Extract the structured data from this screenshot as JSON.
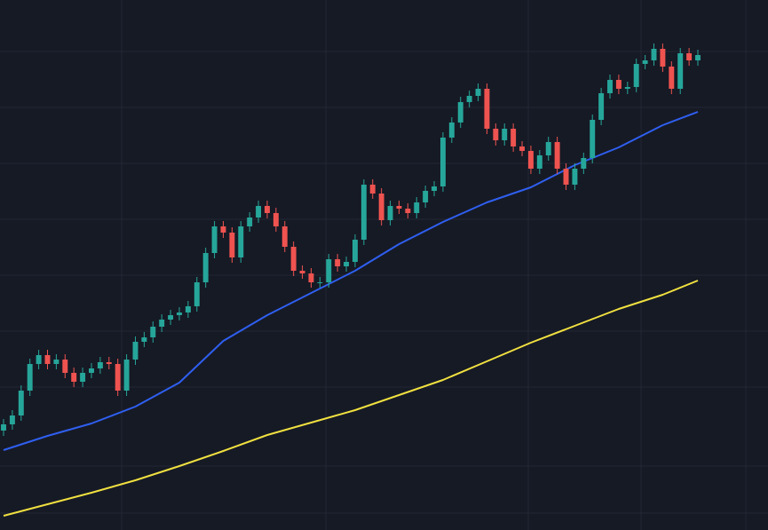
{
  "chart_data": {
    "type": "candlestick",
    "up_color": "#26a69a",
    "down_color": "#ef5350",
    "xlim": [
      0,
      79
    ],
    "ylim": [
      0,
      597
    ],
    "open": [
      112,
      119,
      129,
      157,
      187,
      197,
      187,
      192,
      177,
      167,
      177,
      182,
      189,
      187,
      157,
      192,
      212,
      217,
      229,
      237,
      242,
      245,
      252,
      279,
      312,
      342,
      335,
      307,
      342,
      352,
      365,
      357,
      342,
      319,
      292,
      289,
      279,
      279,
      305,
      297,
      302,
      327,
      389,
      379,
      349,
      365,
      362,
      357,
      369,
      382,
      387,
      442,
      459,
      482,
      489,
      497,
      452,
      439,
      452,
      432,
      427,
      407,
      422,
      437,
      407,
      389,
      407,
      419,
      462,
      492,
      507,
      497,
      499,
      525,
      529,
      542,
      522,
      497,
      537,
      529
    ],
    "high": [
      125,
      135,
      163,
      193,
      203,
      203,
      198,
      198,
      183,
      183,
      188,
      195,
      195,
      193,
      198,
      218,
      223,
      235,
      243,
      248,
      251,
      258,
      285,
      318,
      348,
      348,
      341,
      348,
      358,
      371,
      371,
      363,
      348,
      325,
      298,
      295,
      285,
      311,
      311,
      308,
      333,
      395,
      395,
      385,
      371,
      371,
      368,
      375,
      388,
      393,
      448,
      465,
      488,
      495,
      503,
      503,
      458,
      458,
      458,
      438,
      433,
      428,
      443,
      443,
      413,
      413,
      425,
      468,
      498,
      513,
      513,
      505,
      531,
      535,
      548,
      548,
      528,
      543,
      543,
      541
    ],
    "low": [
      106,
      113,
      123,
      151,
      181,
      181,
      181,
      171,
      161,
      161,
      171,
      176,
      181,
      151,
      151,
      186,
      206,
      211,
      223,
      231,
      236,
      239,
      246,
      273,
      306,
      329,
      301,
      301,
      336,
      346,
      351,
      336,
      313,
      286,
      283,
      273,
      273,
      273,
      291,
      291,
      296,
      321,
      373,
      343,
      343,
      356,
      351,
      351,
      363,
      376,
      381,
      436,
      453,
      476,
      483,
      446,
      433,
      433,
      426,
      421,
      401,
      401,
      416,
      401,
      383,
      383,
      401,
      413,
      456,
      486,
      491,
      491,
      493,
      519,
      523,
      516,
      491,
      491,
      523,
      523
    ],
    "close": [
      119,
      129,
      157,
      187,
      197,
      187,
      192,
      177,
      167,
      177,
      182,
      189,
      187,
      157,
      192,
      212,
      217,
      229,
      237,
      242,
      245,
      252,
      279,
      312,
      342,
      335,
      307,
      342,
      352,
      365,
      357,
      342,
      319,
      292,
      289,
      279,
      279,
      305,
      297,
      302,
      327,
      389,
      379,
      349,
      365,
      362,
      357,
      369,
      382,
      387,
      442,
      459,
      482,
      489,
      497,
      452,
      439,
      452,
      432,
      427,
      407,
      422,
      437,
      407,
      389,
      407,
      419,
      462,
      492,
      507,
      497,
      499,
      525,
      529,
      542,
      522,
      497,
      537,
      529,
      535
    ],
    "series": [
      {
        "color": "#2f5ff0",
        "x": [
          0,
          5,
          10,
          15,
          20,
          25,
          30,
          35,
          40,
          45,
          50,
          55,
          60,
          65,
          70,
          75,
          79
        ],
        "values": [
          90,
          106,
          120,
          139,
          166,
          213,
          242,
          267,
          292,
          322,
          347,
          369,
          386,
          411,
          431,
          456,
          471
        ]
      },
      {
        "color": "#f0e040",
        "x": [
          0,
          5,
          10,
          15,
          20,
          25,
          30,
          35,
          40,
          45,
          50,
          55,
          60,
          65,
          70,
          75,
          79
        ],
        "values": [
          16,
          29,
          42,
          56,
          72,
          89,
          107,
          121,
          135,
          152,
          169,
          190,
          211,
          230,
          249,
          265,
          281
        ]
      }
    ]
  }
}
